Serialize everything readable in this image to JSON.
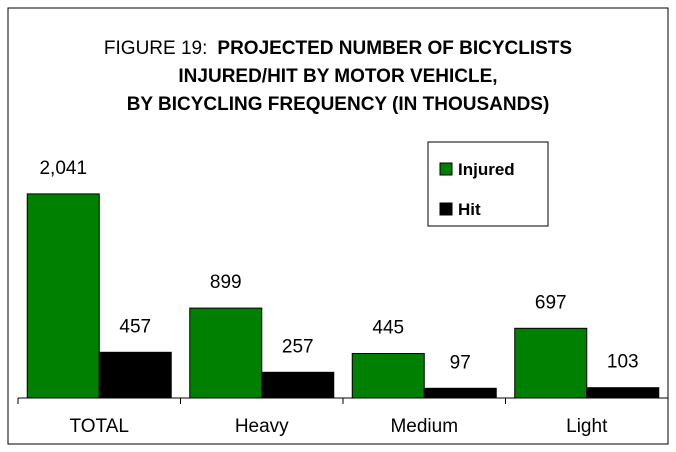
{
  "chart_data": {
    "type": "bar",
    "title": {
      "label": "FIGURE 19:",
      "lines": [
        "PROJECTED NUMBER OF BICYCLISTS",
        "INJURED/HIT BY MOTOR VEHICLE,",
        "BY BICYCLING FREQUENCY (IN THOUSANDS)"
      ]
    },
    "categories": [
      "TOTAL",
      "Heavy",
      "Medium",
      "Light"
    ],
    "series": [
      {
        "name": "Injured",
        "color": "#008000",
        "values": [
          2041,
          899,
          445,
          697
        ],
        "value_labels": [
          "2,041",
          "899",
          "445",
          "697"
        ]
      },
      {
        "name": "Hit",
        "color": "#000000",
        "values": [
          457,
          257,
          97,
          103
        ],
        "value_labels": [
          "457",
          "257",
          "97",
          "103"
        ]
      }
    ],
    "ylim": [
      0,
      2500
    ]
  }
}
